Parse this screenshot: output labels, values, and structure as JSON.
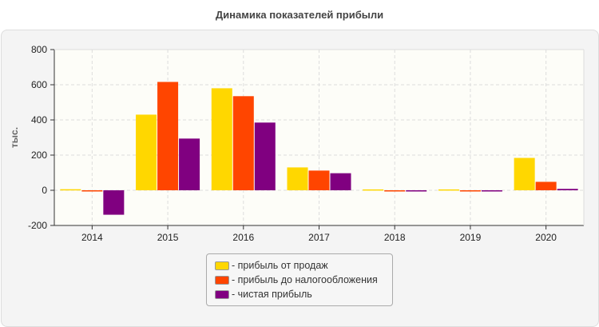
{
  "chart_data": {
    "type": "bar",
    "title": "Динамика показателей прибыли",
    "ylabel": "тыс.",
    "xlabel": "",
    "ylim": [
      -200,
      800
    ],
    "yticks": [
      -200,
      0,
      200,
      400,
      600,
      800
    ],
    "grid": true,
    "legend_position": "bottom",
    "categories": [
      "2014",
      "2015",
      "2016",
      "2017",
      "2018",
      "2019",
      "2020"
    ],
    "series": [
      {
        "name": "- прибыль от продаж",
        "color": "#FFD700",
        "values": [
          6,
          430,
          580,
          130,
          5,
          5,
          184
        ]
      },
      {
        "name": "- прибыль до налогообложения",
        "color": "#FF4500",
        "values": [
          -6,
          616,
          535,
          112,
          -5,
          -2,
          48
        ]
      },
      {
        "name": "- чистая прибыль",
        "color": "#800080",
        "values": [
          -139,
          294,
          385,
          97,
          -5,
          -2,
          8
        ]
      }
    ]
  }
}
